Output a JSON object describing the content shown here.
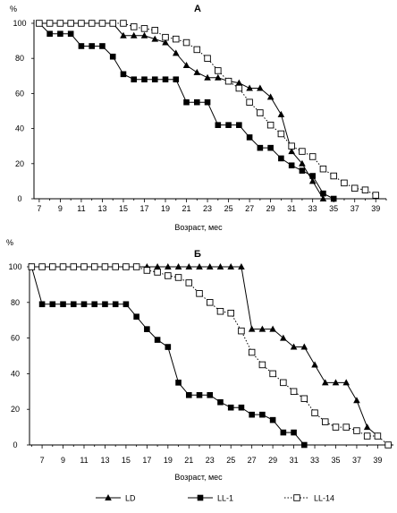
{
  "chart_data": [
    {
      "type": "line",
      "title": "А",
      "ylabel": "%",
      "xlabel": "Возраст, мес",
      "xticks": [
        7,
        9,
        11,
        13,
        15,
        17,
        19,
        21,
        23,
        25,
        27,
        29,
        31,
        33,
        35,
        37,
        39
      ],
      "yticks": [
        0,
        20,
        40,
        60,
        80,
        100
      ],
      "xlim": [
        6.5,
        40
      ],
      "ylim": [
        0,
        100
      ],
      "grid": false,
      "series": [
        {
          "name": "LD",
          "marker": "triangle",
          "style": "solid",
          "x": [
            7,
            8,
            9,
            10,
            11,
            12,
            13,
            14,
            15,
            16,
            17,
            18,
            19,
            20,
            21,
            22,
            23,
            24,
            25,
            26,
            27,
            28,
            29,
            30,
            31,
            32,
            33,
            34
          ],
          "y": [
            100,
            100,
            100,
            100,
            100,
            100,
            100,
            100,
            93,
            93,
            93,
            91,
            89,
            83,
            76,
            72,
            69,
            69,
            67,
            66,
            63,
            63,
            58,
            48,
            27,
            20,
            10,
            0
          ]
        },
        {
          "name": "LL-1",
          "marker": "square",
          "style": "solid",
          "x": [
            7,
            8,
            9,
            10,
            11,
            12,
            13,
            14,
            15,
            16,
            17,
            18,
            19,
            20,
            21,
            22,
            23,
            24,
            25,
            26,
            27,
            28,
            29,
            30,
            31,
            32,
            33,
            34,
            35
          ],
          "y": [
            100,
            94,
            94,
            94,
            87,
            87,
            87,
            81,
            71,
            68,
            68,
            68,
            68,
            68,
            55,
            55,
            55,
            42,
            42,
            42,
            35,
            29,
            29,
            23,
            19,
            16,
            13,
            3,
            0
          ]
        },
        {
          "name": "LL-14",
          "marker": "open-square",
          "style": "dotted",
          "x": [
            7,
            8,
            9,
            10,
            11,
            12,
            13,
            14,
            15,
            16,
            17,
            18,
            19,
            20,
            21,
            22,
            23,
            24,
            25,
            26,
            27,
            28,
            29,
            30,
            31,
            32,
            33,
            34,
            35,
            36,
            37,
            38,
            39
          ],
          "y": [
            100,
            100,
            100,
            100,
            100,
            100,
            100,
            100,
            100,
            98,
            97,
            96,
            92,
            91,
            89,
            85,
            80,
            73,
            67,
            63,
            55,
            49,
            42,
            37,
            30,
            27,
            24,
            17,
            13,
            9,
            6,
            5,
            2
          ]
        }
      ]
    },
    {
      "type": "line",
      "title": "Б",
      "ylabel": "%",
      "xlabel": "Возраст, мес",
      "xticks": [
        7,
        9,
        11,
        13,
        15,
        17,
        19,
        21,
        23,
        25,
        27,
        29,
        31,
        33,
        35,
        37,
        39
      ],
      "yticks": [
        0,
        20,
        40,
        60,
        80,
        100
      ],
      "xlim": [
        5.8,
        40.5
      ],
      "ylim": [
        0,
        100
      ],
      "grid": false,
      "series": [
        {
          "name": "LD",
          "marker": "triangle",
          "style": "solid",
          "x": [
            6,
            8,
            9,
            10,
            11,
            12,
            13,
            14,
            15,
            16,
            17,
            18,
            19,
            20,
            21,
            22,
            23,
            24,
            25,
            26,
            27,
            28,
            29,
            30,
            31,
            32,
            33,
            34,
            35,
            36,
            37,
            38,
            39
          ],
          "y": [
            100,
            100,
            100,
            100,
            100,
            100,
            100,
            100,
            100,
            100,
            100,
            100,
            100,
            100,
            100,
            100,
            100,
            100,
            100,
            100,
            65,
            65,
            65,
            60,
            55,
            55,
            45,
            35,
            35,
            35,
            25,
            10,
            5
          ]
        },
        {
          "name": "LL-1",
          "marker": "square",
          "style": "solid",
          "x": [
            6,
            7,
            8,
            9,
            10,
            11,
            12,
            13,
            14,
            15,
            16,
            17,
            18,
            19,
            20,
            21,
            22,
            23,
            24,
            25,
            26,
            27,
            28,
            29,
            30,
            31,
            32
          ],
          "y": [
            100,
            79,
            79,
            79,
            79,
            79,
            79,
            79,
            79,
            79,
            72,
            65,
            59,
            55,
            35,
            28,
            28,
            28,
            24,
            21,
            21,
            17,
            17,
            14,
            7,
            7,
            0
          ]
        },
        {
          "name": "LL-14",
          "marker": "open-square",
          "style": "dotted",
          "x": [
            6,
            7,
            8,
            9,
            10,
            11,
            12,
            13,
            14,
            15,
            16,
            17,
            18,
            19,
            20,
            21,
            22,
            23,
            24,
            25,
            26,
            27,
            28,
            29,
            30,
            31,
            32,
            33,
            34,
            35,
            36,
            37,
            38,
            39,
            40
          ],
          "y": [
            100,
            100,
            100,
            100,
            100,
            100,
            100,
            100,
            100,
            100,
            100,
            98,
            97,
            95,
            94,
            91,
            85,
            80,
            75,
            74,
            64,
            52,
            45,
            40,
            35,
            30,
            26,
            18,
            13,
            10,
            10,
            8,
            5,
            5,
            0
          ]
        }
      ]
    }
  ],
  "legend": [
    {
      "label": "LD",
      "marker": "triangle",
      "style": "solid"
    },
    {
      "label": "LL-1",
      "marker": "square",
      "style": "solid"
    },
    {
      "label": "LL-14",
      "marker": "open-square",
      "style": "dotted"
    }
  ]
}
